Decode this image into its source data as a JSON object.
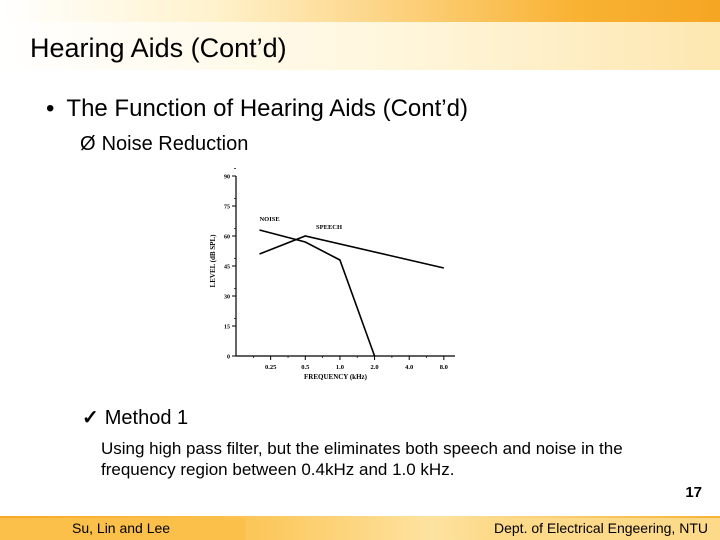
{
  "slide": {
    "title": "Hearing Aids (Cont’d)",
    "bullet_symbol": "•",
    "bullet": "The Function of Hearing Aids (Cont’d)",
    "sub_symbol": "Ø",
    "sub_bullet": "Noise Reduction",
    "method_symbol": "✓",
    "method": "Method 1",
    "description": "Using high pass filter, but the eliminates both speech and noise in the frequency region between 0.4kHz and 1.0 kHz.",
    "page_number": "17"
  },
  "footer": {
    "left": "Su, Lin and Lee",
    "right": "Dept. of Electrical Engeering, NTU"
  },
  "chart_data": {
    "type": "line",
    "xlabel": "FREQUENCY (kHz)",
    "ylabel": "LEVEL (dB SPL)",
    "x_scale": "log",
    "x_ticks": [
      "0.25",
      "0.5",
      "1.0",
      "2.0",
      "4.0",
      "8.0"
    ],
    "y_ticks": [
      0,
      15,
      30,
      45,
      60,
      75,
      90
    ],
    "ylim": [
      0,
      90
    ],
    "series": [
      {
        "name": "NOISE",
        "x": [
          0.2,
          0.5,
          1.0,
          2.0
        ],
        "y": [
          63,
          57,
          48,
          0
        ]
      },
      {
        "name": "SPEECH",
        "x": [
          0.2,
          0.5,
          8.0
        ],
        "y": [
          51,
          60,
          44
        ]
      }
    ]
  }
}
